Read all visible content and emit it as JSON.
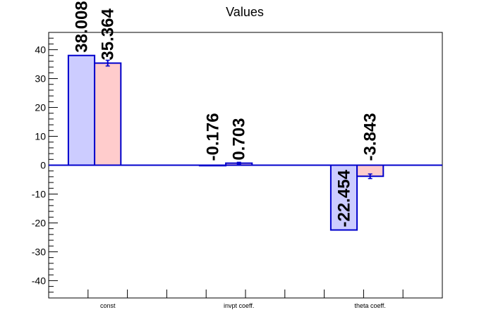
{
  "chart_data": {
    "type": "bar",
    "title": "Values",
    "xlabel": "",
    "ylabel": "",
    "ylim": [
      -46,
      46
    ],
    "yticks": [
      -40,
      -30,
      -20,
      -10,
      0,
      10,
      20,
      30,
      40
    ],
    "grid": false,
    "legend": "none",
    "categories": [
      "const",
      "invpt coeff.",
      "theta coeff."
    ],
    "series": [
      {
        "color_fill": "#ccccff",
        "color_edge": "#0000cc",
        "values": [
          38.008,
          -0.176,
          -22.454
        ],
        "labels": [
          "38.008",
          "-0.176",
          "-22.454"
        ],
        "errors": [
          0,
          0,
          0
        ]
      },
      {
        "color_fill": "#ffcccc",
        "color_edge": "#0000cc",
        "values": [
          35.364,
          0.703,
          -3.843
        ],
        "labels": [
          "35.364",
          "0.703",
          "-3.843"
        ],
        "errors": [
          1.0,
          0.3,
          0.8
        ]
      }
    ]
  }
}
